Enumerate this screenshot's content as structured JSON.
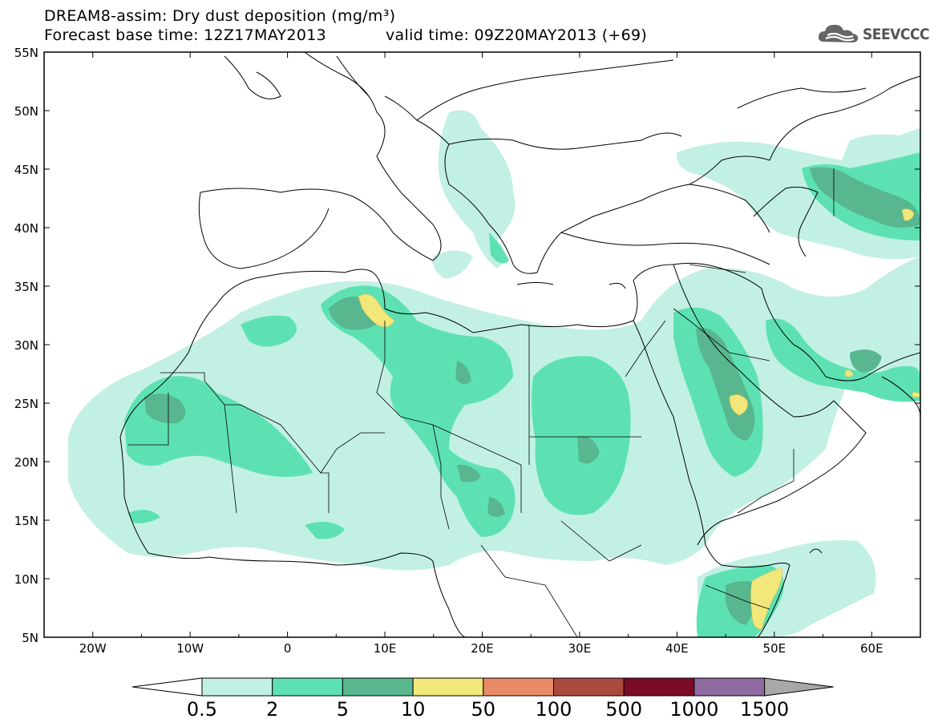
{
  "header": {
    "title_line1": "DREAM8-assim: Dry dust deposition (mg/m³)",
    "title_line2_left": "Forecast base time: 12Z17MAY2013",
    "title_line2_right": "valid time: 09Z20MAY2013 (+69)"
  },
  "logo": {
    "text": "SEEVCCC",
    "icon": "cloud-logo-icon"
  },
  "map": {
    "lat_labels": [
      "55N",
      "50N",
      "45N",
      "40N",
      "35N",
      "30N",
      "25N",
      "20N",
      "15N",
      "10N",
      "5N"
    ],
    "lon_labels": [
      "20W",
      "10W",
      "0",
      "10E",
      "20E",
      "30E",
      "40E",
      "50E",
      "60E"
    ],
    "lon_range": [
      -25,
      65
    ],
    "lat_range": [
      5,
      55
    ]
  },
  "legend": {
    "labels": [
      "0.5",
      "2",
      "5",
      "10",
      "50",
      "100",
      "500",
      "1000",
      "1500"
    ],
    "colors": [
      "#ffffff",
      "#c2f0e4",
      "#5de1b3",
      "#58b78f",
      "#f2e77a",
      "#e98a66",
      "#a94a3c",
      "#7c0b27",
      "#8e6aa0",
      "#a8a8a8"
    ]
  }
}
